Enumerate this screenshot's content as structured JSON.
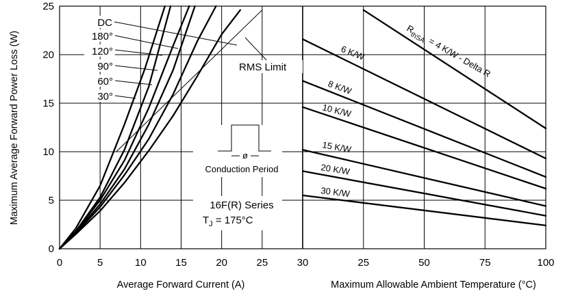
{
  "chart_data": [
    {
      "type": "line",
      "xlabel": "Average Forward Current (A)",
      "ylabel": "Maximum Average Forward Power Loss (W)",
      "xlim": [
        0,
        30
      ],
      "ylim": [
        0,
        25
      ],
      "x_ticks": [
        "0",
        "5",
        "10",
        "15",
        "20",
        "25",
        "30"
      ],
      "y_ticks": [
        "0",
        "5",
        "10",
        "15",
        "20",
        "25"
      ],
      "grid": true,
      "series": [
        {
          "name": "DC",
          "x": [
            0,
            2,
            5,
            8,
            11,
            14,
            17,
            20,
            22.3
          ],
          "y": [
            0,
            1.5,
            3.9,
            6.8,
            10.1,
            13.7,
            17.8,
            22.1,
            24.6
          ]
        },
        {
          "name": "180°",
          "x": [
            0,
            2,
            5,
            8,
            11,
            14,
            17,
            19.3
          ],
          "y": [
            0,
            1.6,
            4.3,
            7.6,
            11.3,
            15.9,
            21.4,
            25
          ]
        },
        {
          "name": "120°",
          "x": [
            0,
            2,
            5,
            8,
            11,
            14,
            16.7
          ],
          "y": [
            0,
            1.7,
            4.6,
            8.2,
            12.8,
            18.4,
            25
          ]
        },
        {
          "name": "90°",
          "x": [
            0,
            2,
            5,
            8,
            11,
            14,
            16
          ],
          "y": [
            0,
            1.8,
            5.0,
            9.1,
            14.5,
            20.9,
            25
          ]
        },
        {
          "name": "60°",
          "x": [
            0,
            2,
            5,
            8,
            11,
            13.7
          ],
          "y": [
            0,
            1.8,
            5.3,
            10.2,
            16.7,
            25
          ]
        },
        {
          "name": "30°",
          "x": [
            0,
            2,
            5,
            8,
            10.5,
            13
          ],
          "y": [
            0,
            2.1,
            6.5,
            12.8,
            18.5,
            25
          ]
        }
      ],
      "rms_limit": {
        "x": [
          7,
          25
        ],
        "y": [
          10,
          24.6
        ]
      }
    },
    {
      "type": "line",
      "xlabel": "Maximum Allowable Ambient Temperature (°C)",
      "xlim": [
        0,
        100
      ],
      "ylim": [
        0,
        25
      ],
      "x_ticks": [
        "30",
        "25",
        "50",
        "75",
        "100"
      ],
      "grid": true,
      "series": [
        {
          "name": "4 K/W - Delta R",
          "x": [
            25,
            100
          ],
          "y": [
            24.6,
            12.4
          ]
        },
        {
          "name": "6 K/W",
          "x": [
            0,
            100
          ],
          "y": [
            21.6,
            9.3
          ]
        },
        {
          "name": "8 K/W",
          "x": [
            0,
            100
          ],
          "y": [
            17.3,
            7.4
          ]
        },
        {
          "name": "10 K/W",
          "x": [
            0,
            100
          ],
          "y": [
            14.6,
            6.2
          ]
        },
        {
          "name": "15 K/W",
          "x": [
            0,
            100
          ],
          "y": [
            10.2,
            4.4
          ]
        },
        {
          "name": "20 K/W",
          "x": [
            0,
            100
          ],
          "y": [
            8.0,
            3.4
          ]
        },
        {
          "name": "30 K/W",
          "x": [
            0,
            100
          ],
          "y": [
            5.5,
            2.4
          ]
        }
      ]
    }
  ],
  "annotations": {
    "dc": "DC",
    "a180": "180°",
    "a120": "120°",
    "a90": "90°",
    "a60": "60°",
    "a30": "30°",
    "rms_limit": "RMS Limit",
    "phi": "ø",
    "conduction_period": "Conduction Period",
    "series_name": "16F(R) Series",
    "tj_prefix": "T",
    "tj_sub": "J",
    "tj_value": " = 175°C",
    "rth_r": "R",
    "rth_sub": "thSA",
    "rth_value": "= 4 K/W - Delta R",
    "k6": "6 K/W",
    "k8": "8 K/W",
    "k10": "10 K/W",
    "k15": "15 K/W",
    "k20": "20 K/W",
    "k30": "30 K/W"
  }
}
